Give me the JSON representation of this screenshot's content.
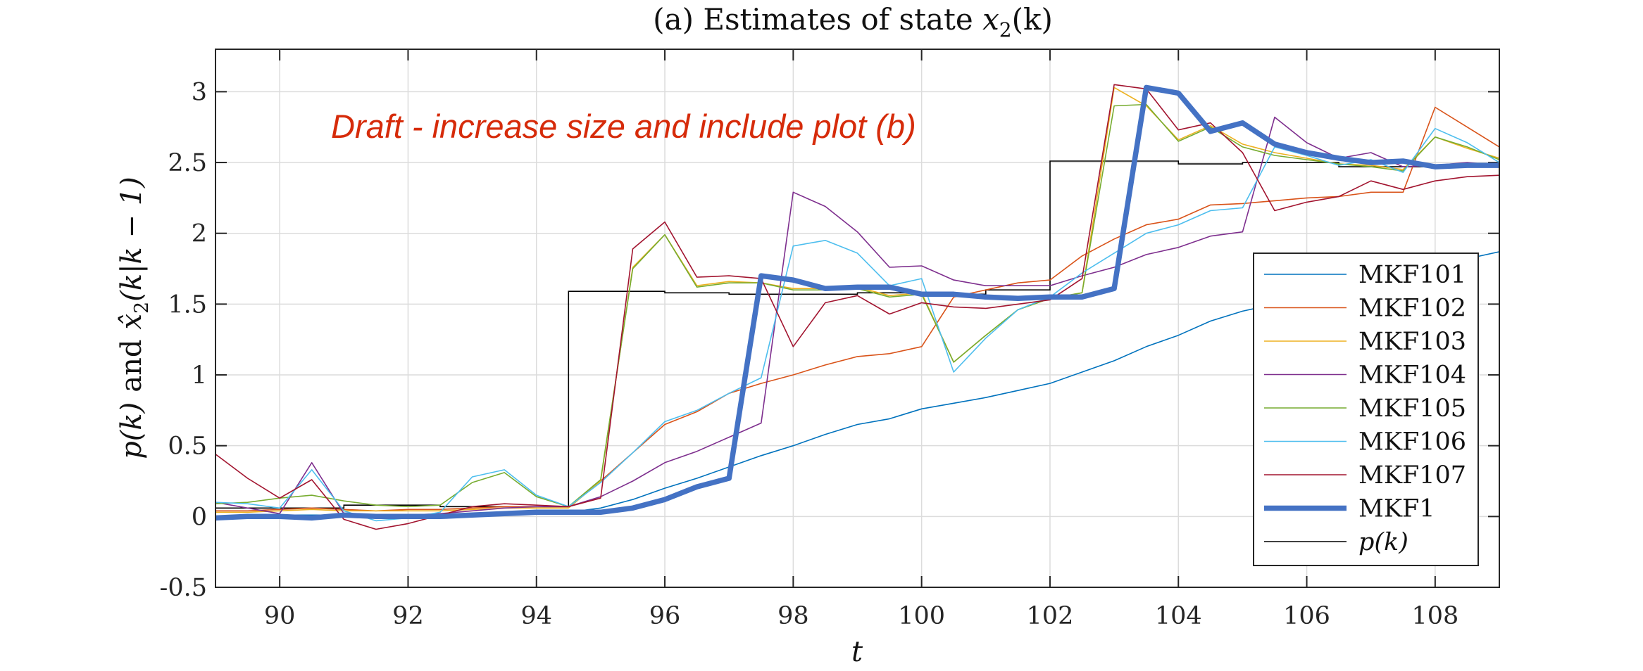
{
  "chart_data": {
    "type": "line",
    "title_prefix": "(a) Estimates of state ",
    "title_var": "x",
    "title_sub": "2",
    "title_suffix": "(k)",
    "xlabel": "t",
    "ylabel_p": "p(k)",
    "ylabel_and": "and",
    "ylabel_xhat": "x̂",
    "ylabel_sub": "2",
    "ylabel_arg": "(k|k − 1)",
    "annotation": "Draft - increase size and include plot (b)",
    "annotation_color": "#d62b0a",
    "xlim": [
      89,
      109
    ],
    "ylim": [
      -0.5,
      3.3
    ],
    "xticks": [
      90,
      92,
      94,
      96,
      98,
      100,
      102,
      104,
      106,
      108
    ],
    "yticks": [
      -0.5,
      0,
      0.5,
      1,
      1.5,
      2,
      2.5,
      3
    ],
    "xtick_labels": [
      "90",
      "92",
      "94",
      "96",
      "98",
      "100",
      "102",
      "104",
      "106",
      "108"
    ],
    "ytick_labels": [
      "-0.5",
      "0",
      "0.5",
      "1",
      "1.5",
      "2",
      "2.5",
      "3"
    ],
    "grid": true,
    "legend_position": "right",
    "x": [
      89,
      89.5,
      90,
      90.5,
      91,
      91.5,
      92,
      92.5,
      93,
      93.5,
      94,
      94.5,
      95,
      95.5,
      96,
      96.5,
      97,
      97.5,
      98,
      98.5,
      99,
      99.5,
      100,
      100.5,
      101,
      101.5,
      102,
      102.5,
      103,
      103.5,
      104,
      104.5,
      105,
      105.5,
      106,
      106.5,
      107,
      107.5,
      108,
      108.5,
      109
    ],
    "series": [
      {
        "name": "MKF101",
        "color": "#0072bd",
        "width": 1.6,
        "values": [
          0.0,
          0.0,
          0.01,
          0.01,
          0.01,
          0.0,
          0.0,
          0.01,
          0.01,
          0.02,
          0.03,
          0.03,
          0.06,
          0.12,
          0.2,
          0.27,
          0.35,
          0.43,
          0.5,
          0.58,
          0.65,
          0.69,
          0.76,
          0.8,
          0.84,
          0.89,
          0.94,
          1.02,
          1.1,
          1.2,
          1.28,
          1.38,
          1.45,
          1.5,
          1.56,
          1.62,
          1.68,
          1.73,
          1.78,
          1.82,
          1.87
        ]
      },
      {
        "name": "MKF102",
        "color": "#d95319",
        "width": 1.6,
        "values": [
          0.04,
          0.04,
          0.05,
          0.06,
          0.05,
          0.04,
          0.05,
          0.05,
          0.06,
          0.07,
          0.07,
          0.07,
          0.25,
          0.45,
          0.65,
          0.74,
          0.87,
          0.94,
          1.0,
          1.07,
          1.13,
          1.15,
          1.2,
          1.55,
          1.6,
          1.65,
          1.67,
          1.84,
          1.96,
          2.06,
          2.1,
          2.2,
          2.21,
          2.23,
          2.25,
          2.26,
          2.29,
          2.29,
          2.89,
          2.75,
          2.61
        ]
      },
      {
        "name": "MKF103",
        "color": "#edb120",
        "width": 1.6,
        "values": [
          0.03,
          0.03,
          0.04,
          0.05,
          0.04,
          0.04,
          0.04,
          0.04,
          0.05,
          0.06,
          0.06,
          0.06,
          0.25,
          1.76,
          1.99,
          1.63,
          1.66,
          1.65,
          1.61,
          1.61,
          1.62,
          1.56,
          1.58,
          1.09,
          1.28,
          1.46,
          1.54,
          1.58,
          3.03,
          2.9,
          2.66,
          2.76,
          2.63,
          2.57,
          2.53,
          2.49,
          2.48,
          2.45,
          2.68,
          2.6,
          2.53
        ]
      },
      {
        "name": "MKF104",
        "color": "#7e2f8e",
        "width": 1.6,
        "values": [
          0.1,
          0.06,
          0.02,
          0.38,
          0.02,
          0.0,
          0.01,
          0.02,
          0.04,
          0.06,
          0.07,
          0.07,
          0.14,
          0.25,
          0.38,
          0.46,
          0.56,
          0.66,
          2.29,
          2.19,
          2.01,
          1.76,
          1.77,
          1.67,
          1.63,
          1.63,
          1.63,
          1.7,
          1.76,
          1.85,
          1.9,
          1.98,
          2.01,
          2.82,
          2.64,
          2.53,
          2.57,
          2.47,
          2.48,
          2.5,
          2.48
        ]
      },
      {
        "name": "MKF105",
        "color": "#77ac30",
        "width": 1.6,
        "values": [
          0.09,
          0.1,
          0.13,
          0.15,
          0.11,
          0.08,
          0.07,
          0.08,
          0.24,
          0.31,
          0.14,
          0.07,
          0.26,
          1.75,
          1.99,
          1.62,
          1.65,
          1.65,
          1.6,
          1.6,
          1.61,
          1.55,
          1.57,
          1.09,
          1.28,
          1.46,
          1.54,
          1.58,
          2.9,
          2.91,
          2.65,
          2.75,
          2.61,
          2.55,
          2.52,
          2.49,
          2.47,
          2.44,
          2.68,
          2.61,
          2.52
        ]
      },
      {
        "name": "MKF106",
        "color": "#4dbeee",
        "width": 1.6,
        "values": [
          0.1,
          0.09,
          0.06,
          0.33,
          0.04,
          -0.03,
          -0.01,
          0.03,
          0.28,
          0.33,
          0.15,
          0.07,
          0.24,
          0.45,
          0.67,
          0.75,
          0.87,
          0.98,
          1.91,
          1.95,
          1.86,
          1.63,
          1.68,
          1.02,
          1.26,
          1.46,
          1.55,
          1.72,
          1.86,
          2.0,
          2.06,
          2.16,
          2.18,
          2.61,
          2.55,
          2.48,
          2.52,
          2.43,
          2.74,
          2.64,
          2.5
        ]
      },
      {
        "name": "MKF107",
        "color": "#a2142f",
        "width": 1.6,
        "values": [
          0.44,
          0.27,
          0.13,
          0.26,
          -0.02,
          -0.09,
          -0.05,
          0.01,
          0.07,
          0.09,
          0.08,
          0.07,
          0.13,
          1.89,
          2.08,
          1.69,
          1.7,
          1.68,
          1.2,
          1.51,
          1.56,
          1.43,
          1.51,
          1.48,
          1.47,
          1.5,
          1.53,
          1.68,
          3.05,
          3.02,
          2.73,
          2.78,
          2.57,
          2.16,
          2.22,
          2.26,
          2.37,
          2.31,
          2.37,
          2.4,
          2.41
        ]
      },
      {
        "name": "MKF1",
        "color": "#4472c4",
        "width": 7.5,
        "values": [
          -0.01,
          0.0,
          0.0,
          -0.01,
          0.01,
          0.0,
          0.0,
          0.0,
          0.01,
          0.02,
          0.03,
          0.03,
          0.03,
          0.06,
          0.12,
          0.21,
          0.27,
          1.7,
          1.67,
          1.61,
          1.62,
          1.62,
          1.57,
          1.57,
          1.55,
          1.54,
          1.55,
          1.55,
          1.61,
          3.03,
          2.99,
          2.72,
          2.78,
          2.63,
          2.57,
          2.53,
          2.5,
          2.51,
          2.47,
          2.48,
          2.48
        ]
      }
    ],
    "step_series": {
      "name": "p(k)",
      "color": "#000000",
      "width": 1.6,
      "x": [
        89,
        94.5,
        94.5,
        102,
        102,
        109
      ],
      "values": [
        0.06,
        0.06,
        1.59,
        1.59,
        2.51,
        2.51
      ],
      "segment_values": [
        0.06,
        0.08,
        0.07,
        1.59,
        1.58,
        1.57,
        1.58,
        1.57,
        1.6,
        2.51,
        2.49,
        2.5,
        2.47,
        2.47
      ]
    }
  }
}
